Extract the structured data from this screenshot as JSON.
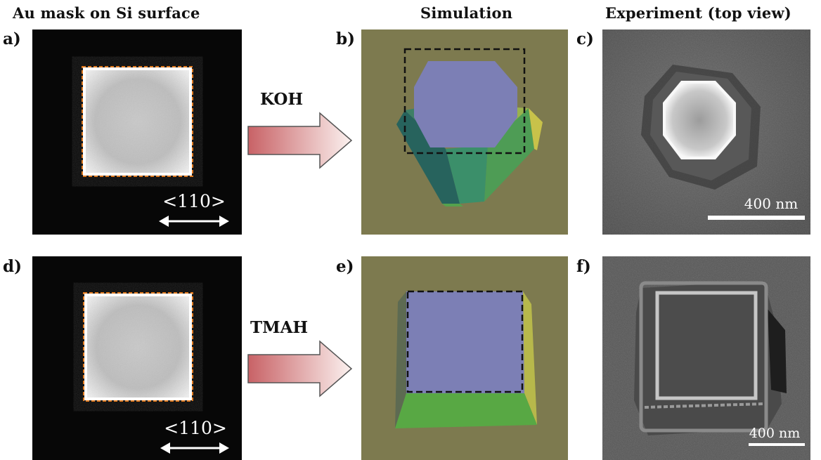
{
  "column_titles": {
    "mask": "Au mask on Si surface",
    "simulation": "Simulation",
    "experiment": "Experiment (top view)"
  },
  "panel_labels": {
    "a": "a)",
    "b": "b)",
    "c": "c)",
    "d": "d)",
    "e": "e)",
    "f": "f)"
  },
  "etchants": {
    "row1": "KOH",
    "row2": "TMAH"
  },
  "direction_label": "<110>",
  "scale_bars": {
    "c": "400 nm",
    "f": "400 nm"
  },
  "colors": {
    "mask_background": "#070707",
    "mask_outline": "#e07a20",
    "simulation_background": "#7d7a4f",
    "top_facet": "#7c7fb5",
    "sem_background": "#5c5c5c",
    "arrow_fill_start": "#c86266",
    "arrow_fill_end": "#fbf1ef"
  }
}
